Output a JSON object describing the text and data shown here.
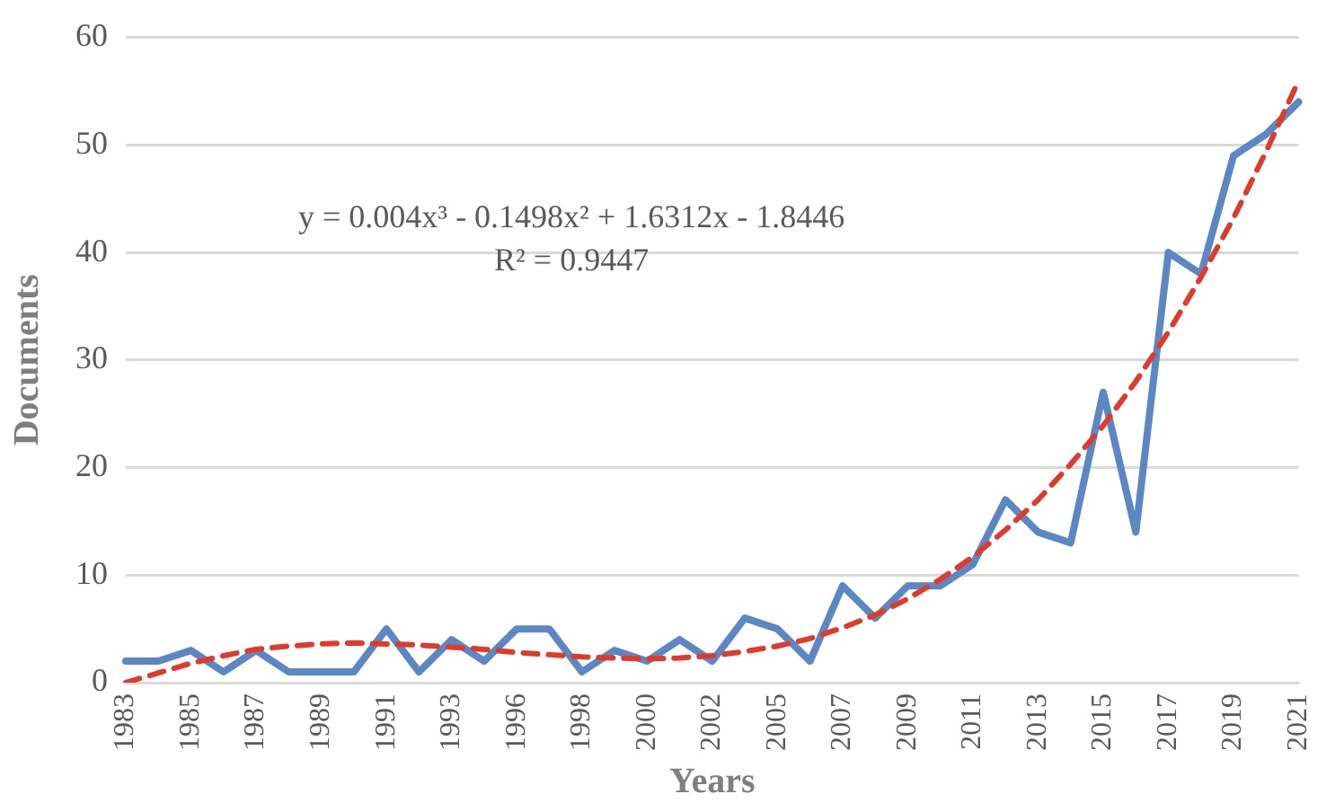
{
  "chart_data": {
    "type": "line",
    "xlabel": "Years",
    "ylabel": "Documents",
    "categories": [
      "1983",
      null,
      "1985",
      null,
      "1987",
      null,
      "1989",
      null,
      "1991",
      null,
      "1993",
      null,
      "1996",
      null,
      "1998",
      null,
      "2000",
      null,
      "2002",
      null,
      "2005",
      null,
      "2007",
      null,
      "2009",
      null,
      "2011",
      null,
      "2013",
      null,
      "2015",
      null,
      "2017",
      null,
      "2019",
      null,
      "2021"
    ],
    "series": [
      {
        "color": "#5b87c5",
        "line_style": "solid",
        "values": [
          2,
          2,
          3,
          1,
          3,
          1,
          1,
          1,
          5,
          1,
          4,
          2,
          5,
          5,
          1,
          3,
          2,
          4,
          2,
          6,
          5,
          2,
          9,
          6,
          9,
          9,
          11,
          17,
          14,
          13,
          27,
          14,
          40,
          38,
          49,
          51,
          54
        ]
      },
      {
        "color": "#e03a2a",
        "line_style": "dashed",
        "values": [
          0,
          0.9,
          1.8,
          2.5,
          3.1,
          3.4,
          3.6,
          3.7,
          3.6,
          3.5,
          3.3,
          3.1,
          2.8,
          2.6,
          2.4,
          2.3,
          2.2,
          2.3,
          2.5,
          2.9,
          3.4,
          4.1,
          5.1,
          6.3,
          7.8,
          9.6,
          11.7,
          14.2,
          17.0,
          20.3,
          23.9,
          28.0,
          32.6,
          37.7,
          43.2,
          49.4,
          56.0
        ]
      }
    ],
    "ylim": [
      0,
      60
    ],
    "yticks": [
      0,
      10,
      20,
      30,
      40,
      50,
      60
    ],
    "grid": "y",
    "legend": false,
    "marker": "none",
    "annotations": [
      "y = 0.004x³ - 0.1498x² + 1.6312x - 1.8446",
      "R² = 0.9447"
    ]
  }
}
